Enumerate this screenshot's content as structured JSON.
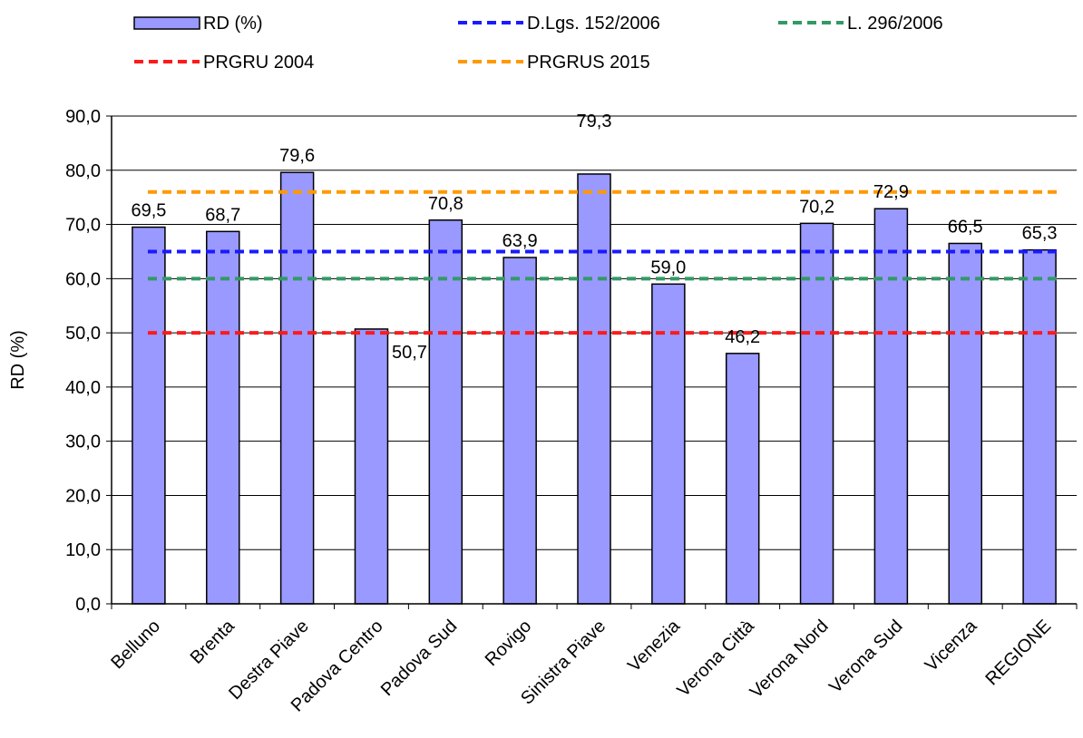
{
  "chart_data": {
    "type": "bar",
    "title": "",
    "xlabel": "",
    "ylabel": "RD (%)",
    "ylim": [
      0,
      90
    ],
    "yticks": [
      "0,0",
      "10,0",
      "20,0",
      "30,0",
      "40,0",
      "50,0",
      "60,0",
      "70,0",
      "80,0",
      "90,0"
    ],
    "grid": true,
    "legend_position": "top",
    "categories": [
      "Belluno",
      "Brenta",
      "Destra Piave",
      "Padova Centro",
      "Padova Sud",
      "Rovigo",
      "Sinistra Piave",
      "Venezia",
      "Verona Città",
      "Verona Nord",
      "Verona Sud",
      "Vicenza",
      "REGIONE"
    ],
    "series": [
      {
        "name": "RD (%)",
        "color": "#9999ff",
        "values": [
          69.5,
          68.7,
          79.6,
          50.7,
          70.8,
          63.9,
          79.3,
          59.0,
          46.2,
          70.2,
          72.9,
          66.5,
          65.3
        ],
        "labels": [
          "69,5",
          "68,7",
          "79,6",
          "50,7",
          "70,8",
          "63,9",
          "79,3",
          "59,0",
          "46,2",
          "70,2",
          "72,9",
          "66,5",
          "65,3"
        ]
      }
    ],
    "reference_lines": [
      {
        "name": "D.Lgs. 152/2006",
        "value": 65,
        "color": "#1a1aff",
        "style": "dashed"
      },
      {
        "name": "L. 296/2006",
        "value": 60,
        "color": "#339966",
        "style": "dashed"
      },
      {
        "name": "PRGRU 2004",
        "value": 50,
        "color": "#ff1a1a",
        "style": "dashed"
      },
      {
        "name": "PRGRUS 2015",
        "value": 76,
        "color": "#ff9900",
        "style": "dashed"
      }
    ]
  }
}
